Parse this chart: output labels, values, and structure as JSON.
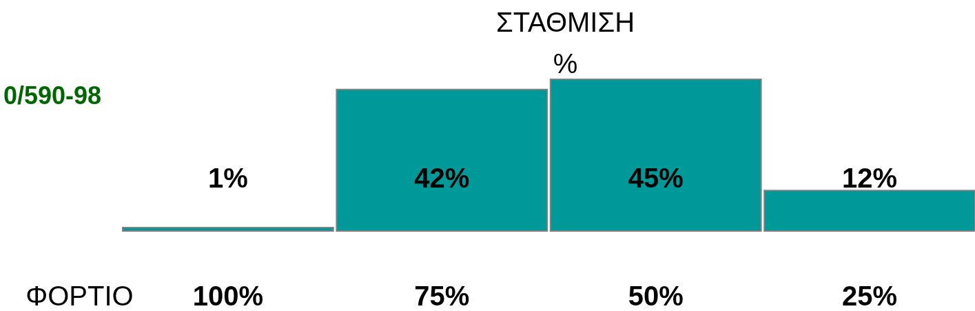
{
  "chart_data": {
    "type": "bar",
    "title": "ΣΤΑΘΜΙΣΗ\n%",
    "xlabel": "ΦΟΡΤΙΟ",
    "categories": [
      "100%",
      "75%",
      "50%",
      "25%"
    ],
    "values": [
      1,
      42,
      45,
      12
    ],
    "value_labels": [
      "1%",
      "42%",
      "45%",
      "12%"
    ],
    "color": "#009999",
    "annotations": [
      "0/590-98"
    ]
  }
}
